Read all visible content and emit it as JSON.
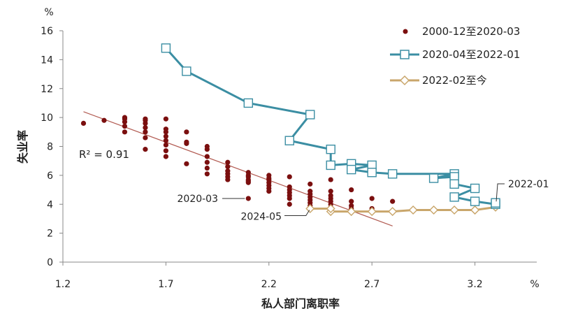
{
  "chart_data": {
    "type": "scatter",
    "title": "",
    "xlabel": "私人部门离职率",
    "ylabel": "失业率",
    "x_unit": "%",
    "y_unit": "%",
    "xlim": [
      1.2,
      3.5
    ],
    "ylim": [
      0,
      16
    ],
    "x_ticks": [
      "1.2",
      "1.7",
      "2.2",
      "2.7",
      "3.2"
    ],
    "y_ticks": [
      "0",
      "2",
      "4",
      "6",
      "8",
      "10",
      "12",
      "14",
      "16"
    ],
    "grid": false,
    "legend_position": "top-right",
    "colors": {
      "s1": "#7b0f0f",
      "s2": "#3b8ea3",
      "s3": "#c9a66b",
      "trend": "#b25b52"
    },
    "trendline": {
      "x": [
        1.3,
        2.8
      ],
      "y": [
        10.4,
        2.5
      ],
      "r2_label": "R² = 0.91"
    },
    "annotations": [
      {
        "label": "2020-03",
        "x": 2.1,
        "y": 4.4
      },
      {
        "label": "2024-05",
        "x": 2.4,
        "y": 3.7
      },
      {
        "label": "2022-01",
        "x": 3.3,
        "y": 4.0
      }
    ],
    "series": [
      {
        "name": "2000-12至2020-03",
        "style": "dots",
        "points": [
          [
            1.3,
            9.6
          ],
          [
            1.4,
            9.8
          ],
          [
            1.5,
            9.0
          ],
          [
            1.5,
            9.4
          ],
          [
            1.5,
            9.7
          ],
          [
            1.5,
            9.9
          ],
          [
            1.5,
            10.0
          ],
          [
            1.6,
            7.8
          ],
          [
            1.6,
            8.6
          ],
          [
            1.6,
            9.0
          ],
          [
            1.6,
            9.3
          ],
          [
            1.6,
            9.6
          ],
          [
            1.6,
            9.8
          ],
          [
            1.6,
            9.9
          ],
          [
            1.7,
            7.3
          ],
          [
            1.7,
            7.7
          ],
          [
            1.7,
            8.1
          ],
          [
            1.7,
            8.4
          ],
          [
            1.7,
            8.7
          ],
          [
            1.7,
            9.0
          ],
          [
            1.7,
            9.2
          ],
          [
            1.7,
            9.9
          ],
          [
            1.8,
            6.8
          ],
          [
            1.8,
            8.2
          ],
          [
            1.8,
            8.3
          ],
          [
            1.8,
            9.0
          ],
          [
            1.9,
            6.1
          ],
          [
            1.9,
            6.5
          ],
          [
            1.9,
            6.9
          ],
          [
            1.9,
            7.3
          ],
          [
            1.9,
            7.8
          ],
          [
            1.9,
            8.0
          ],
          [
            2.0,
            5.7
          ],
          [
            2.0,
            5.9
          ],
          [
            2.0,
            6.1
          ],
          [
            2.0,
            6.3
          ],
          [
            2.0,
            6.6
          ],
          [
            2.0,
            6.9
          ],
          [
            2.1,
            4.4
          ],
          [
            2.1,
            5.5
          ],
          [
            2.1,
            5.6
          ],
          [
            2.1,
            5.7
          ],
          [
            2.1,
            5.9
          ],
          [
            2.1,
            6.0
          ],
          [
            2.1,
            6.2
          ],
          [
            2.2,
            4.9
          ],
          [
            2.2,
            5.1
          ],
          [
            2.2,
            5.3
          ],
          [
            2.2,
            5.5
          ],
          [
            2.2,
            5.7
          ],
          [
            2.2,
            5.8
          ],
          [
            2.2,
            6.0
          ],
          [
            2.3,
            4.0
          ],
          [
            2.3,
            4.4
          ],
          [
            2.3,
            4.6
          ],
          [
            2.3,
            4.8
          ],
          [
            2.3,
            5.0
          ],
          [
            2.3,
            5.2
          ],
          [
            2.3,
            5.9
          ],
          [
            2.4,
            3.9
          ],
          [
            2.4,
            4.1
          ],
          [
            2.4,
            4.3
          ],
          [
            2.4,
            4.5
          ],
          [
            2.4,
            4.7
          ],
          [
            2.4,
            4.9
          ],
          [
            2.4,
            5.4
          ],
          [
            2.5,
            3.6
          ],
          [
            2.5,
            3.8
          ],
          [
            2.5,
            4.0
          ],
          [
            2.5,
            4.2
          ],
          [
            2.5,
            4.4
          ],
          [
            2.5,
            4.6
          ],
          [
            2.5,
            4.9
          ],
          [
            2.5,
            5.7
          ],
          [
            2.6,
            3.5
          ],
          [
            2.6,
            3.7
          ],
          [
            2.6,
            3.9
          ],
          [
            2.6,
            4.2
          ],
          [
            2.6,
            5.0
          ],
          [
            2.7,
            3.7
          ],
          [
            2.7,
            4.4
          ],
          [
            2.8,
            4.2
          ]
        ]
      },
      {
        "name": "2020-04至2022-01",
        "style": "line-square",
        "points": [
          [
            1.7,
            14.8
          ],
          [
            1.8,
            13.2
          ],
          [
            2.1,
            11.0
          ],
          [
            2.4,
            10.2
          ],
          [
            2.3,
            8.4
          ],
          [
            2.5,
            7.8
          ],
          [
            2.5,
            6.7
          ],
          [
            2.6,
            6.8
          ],
          [
            2.7,
            6.7
          ],
          [
            2.6,
            6.4
          ],
          [
            2.7,
            6.2
          ],
          [
            2.8,
            6.1
          ],
          [
            3.1,
            6.1
          ],
          [
            3.0,
            5.8
          ],
          [
            3.1,
            5.9
          ],
          [
            3.1,
            5.4
          ],
          [
            3.2,
            5.1
          ],
          [
            3.1,
            4.5
          ],
          [
            3.2,
            4.2
          ],
          [
            3.3,
            4.0
          ],
          [
            3.3,
            4.1
          ]
        ]
      },
      {
        "name": "2022-02至今",
        "style": "line-diamond",
        "points": [
          [
            3.3,
            3.8
          ],
          [
            3.2,
            3.6
          ],
          [
            3.2,
            3.6
          ],
          [
            3.1,
            3.6
          ],
          [
            3.0,
            3.6
          ],
          [
            2.9,
            3.6
          ],
          [
            2.8,
            3.5
          ],
          [
            2.7,
            3.5
          ],
          [
            2.6,
            3.5
          ],
          [
            2.5,
            3.5
          ],
          [
            2.5,
            3.7
          ],
          [
            2.4,
            3.7
          ]
        ]
      }
    ]
  }
}
